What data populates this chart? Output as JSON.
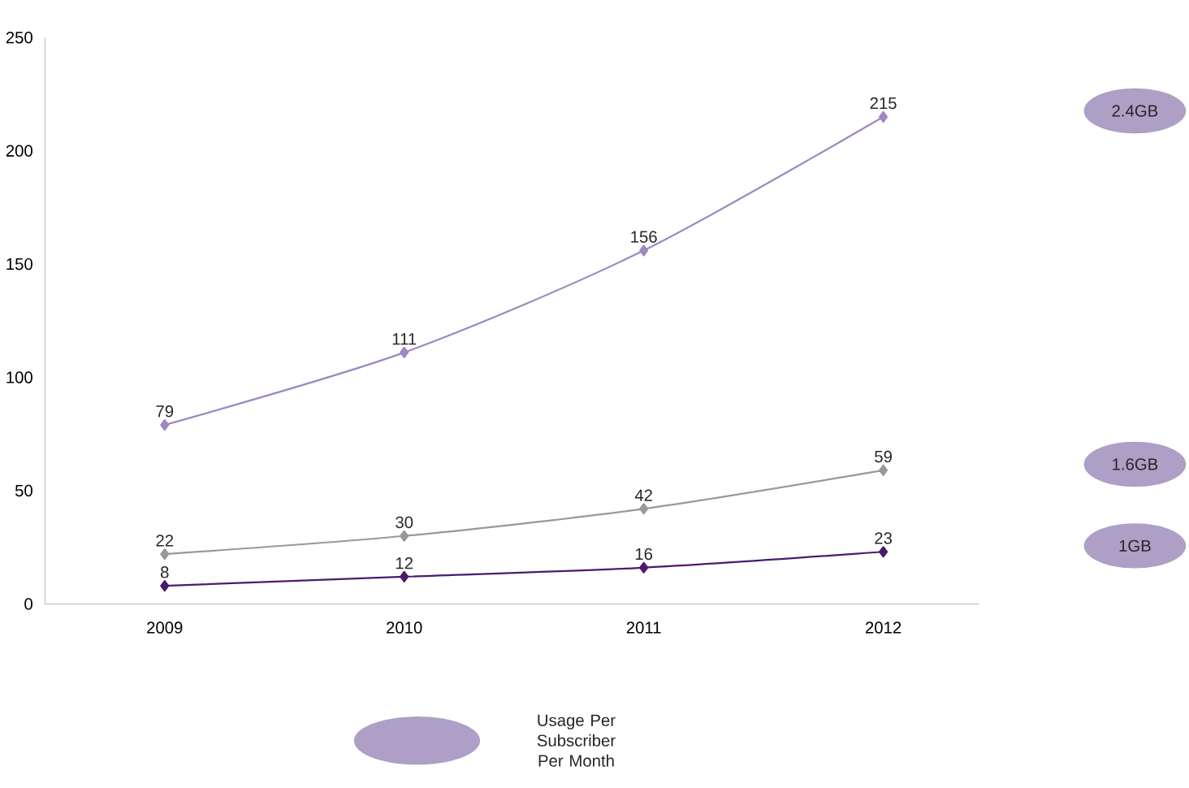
{
  "chart_data": {
    "type": "line",
    "categories": [
      "2009",
      "2010",
      "2011",
      "2012"
    ],
    "series": [
      {
        "name": "2.4GB",
        "color": "#9e88bf",
        "values": [
          79,
          111,
          156,
          215
        ]
      },
      {
        "name": "1.6GB",
        "color": "#999999",
        "values": [
          22,
          30,
          42,
          59
        ]
      },
      {
        "name": "1GB",
        "color": "#4b1a6e",
        "values": [
          8,
          12,
          16,
          23
        ]
      }
    ],
    "ylim": [
      0,
      250
    ],
    "yticks": [
      0,
      50,
      100,
      150,
      200,
      250
    ],
    "data_labels": true,
    "marker": "diamond",
    "line_style": "solid",
    "grid": false,
    "legend_title": "Usage Per Subscriber Per Month"
  }
}
